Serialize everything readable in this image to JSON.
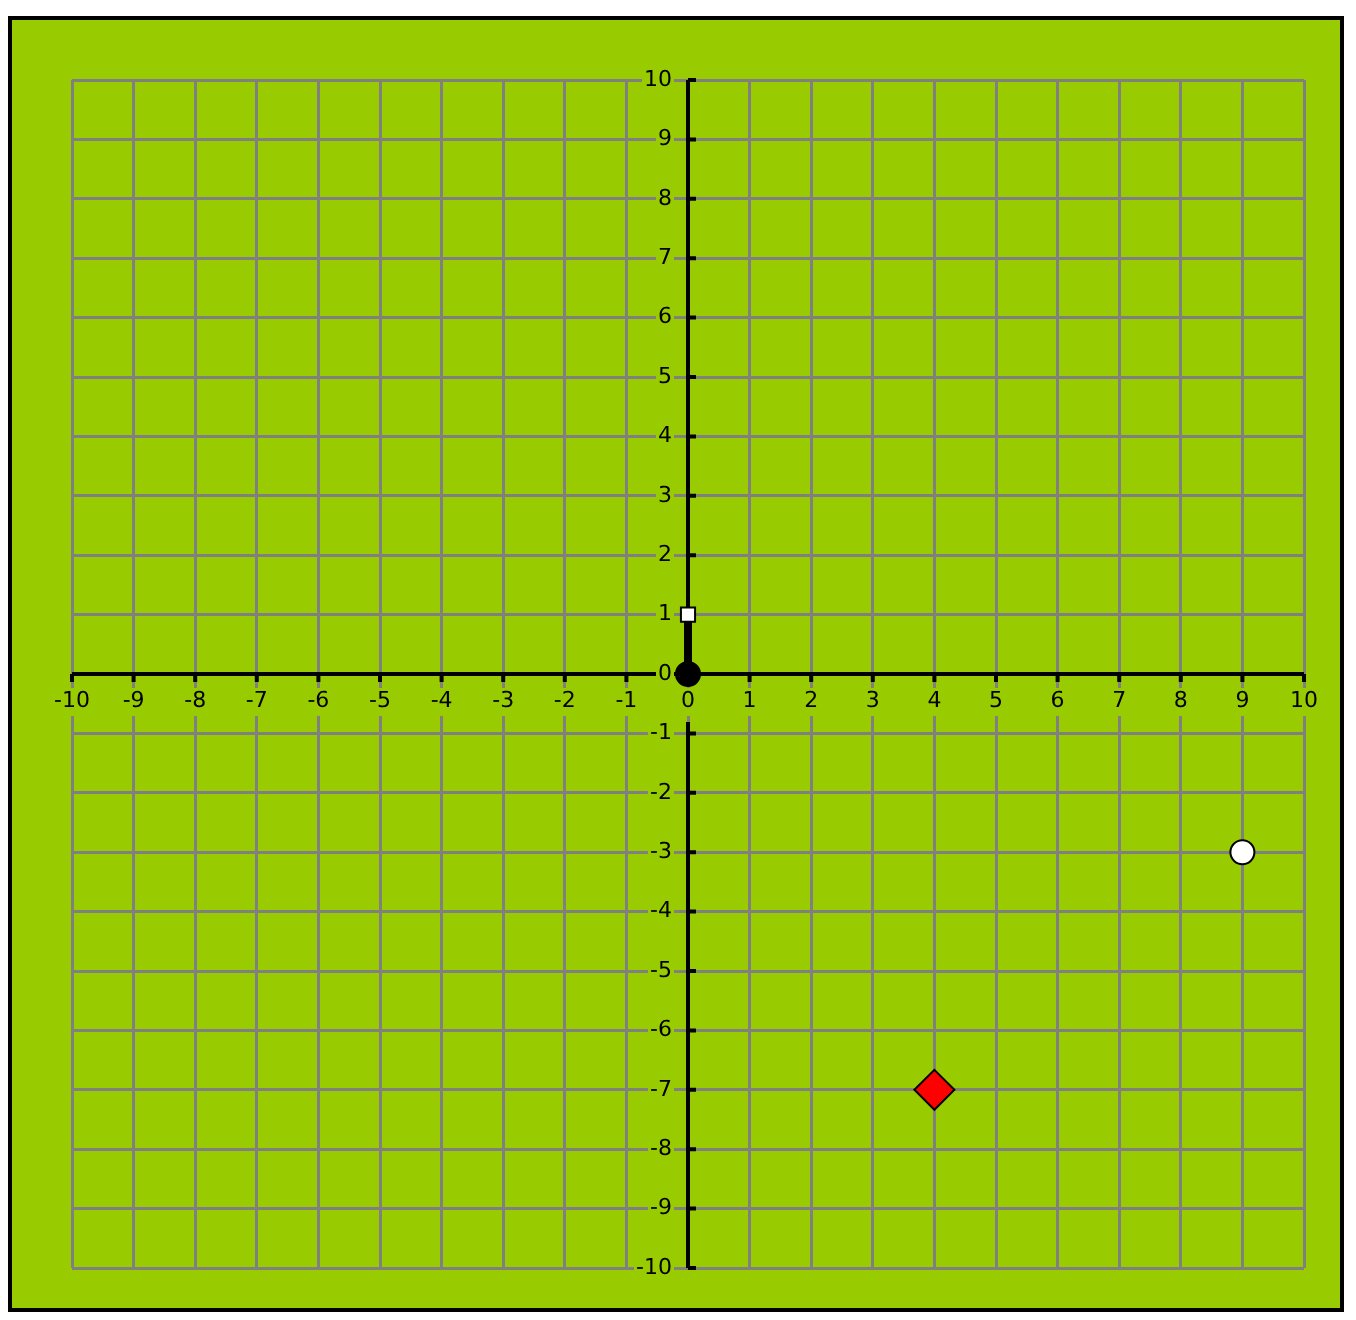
{
  "chart_data": {
    "type": "scatter",
    "xlim": [
      -10,
      10
    ],
    "ylim": [
      -10,
      10
    ],
    "xticks": [
      -10,
      -9,
      -8,
      -7,
      -6,
      -5,
      -4,
      -3,
      -2,
      -1,
      0,
      1,
      2,
      3,
      4,
      5,
      6,
      7,
      8,
      9,
      10
    ],
    "yticks": [
      -10,
      -9,
      -8,
      -7,
      -6,
      -5,
      -4,
      -3,
      -2,
      -1,
      0,
      1,
      2,
      3,
      4,
      5,
      6,
      7,
      8,
      9,
      10
    ],
    "grid": true,
    "legend": false,
    "series": [
      {
        "type": "line",
        "x": [
          0,
          0
        ],
        "values": [
          0,
          1
        ],
        "color": "#000000",
        "marker": "none"
      },
      {
        "x": [
          0
        ],
        "values": [
          0
        ],
        "color": "#000000",
        "marker": "circle"
      },
      {
        "x": [
          0
        ],
        "values": [
          1
        ],
        "color": "#ffffff",
        "marker": "square"
      },
      {
        "x": [
          4
        ],
        "values": [
          -7
        ],
        "color": "#ff0000",
        "marker": "diamond"
      },
      {
        "x": [
          9
        ],
        "values": [
          -3
        ],
        "color": "#ffffff",
        "marker": "circle"
      }
    ]
  }
}
